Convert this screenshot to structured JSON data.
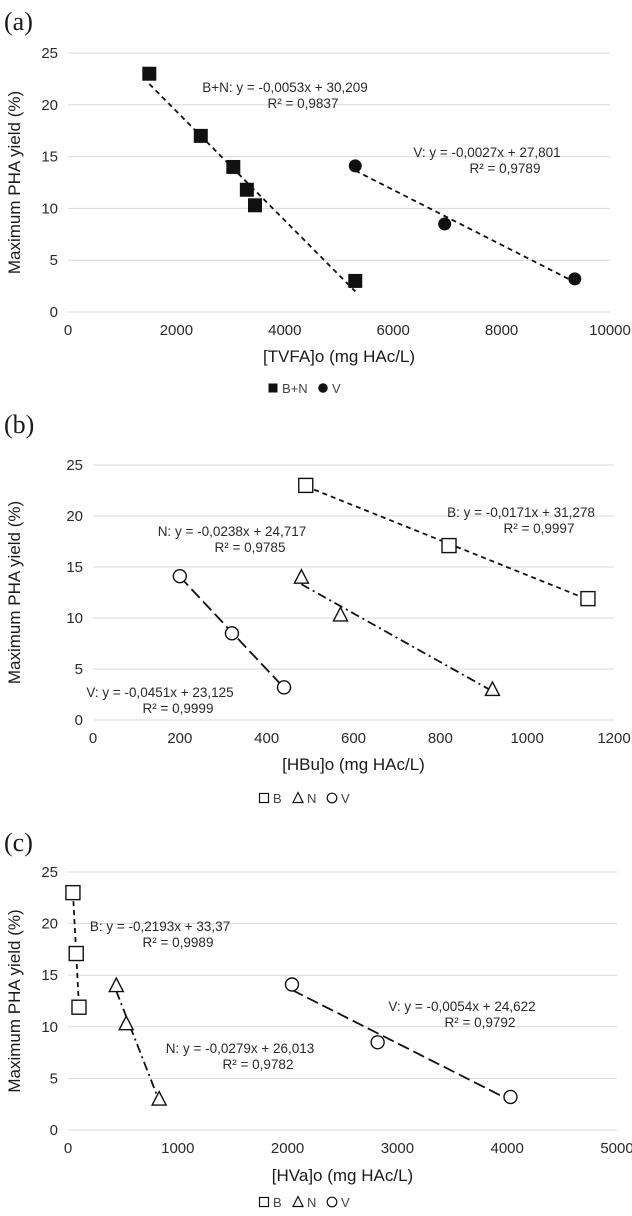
{
  "chart_data": [
    {
      "panel": "(a)",
      "type": "scatter",
      "xlabel": "[TVFA]o (mg HAc/L)",
      "ylabel": "Maximum PHA yield (%)",
      "xlim": [
        0,
        10000
      ],
      "ylim": [
        0,
        25
      ],
      "xticks": [
        0,
        2000,
        4000,
        6000,
        8000,
        10000
      ],
      "yticks": [
        0,
        5,
        10,
        15,
        20,
        25
      ],
      "grid": true,
      "legend_position": "bottom",
      "series": [
        {
          "name": "B+N",
          "marker": "square-filled",
          "line": "dashed",
          "points": [
            [
              1500,
              23.0
            ],
            [
              2450,
              17.0
            ],
            [
              3050,
              14.0
            ],
            [
              3300,
              11.8
            ],
            [
              3450,
              10.3
            ],
            [
              5300,
              3.0
            ]
          ],
          "fit_x": [
            1500,
            5300
          ],
          "equation": "B+N: y = -0,0053x + 30,209",
          "r2": "R² = 0,9837"
        },
        {
          "name": "V",
          "marker": "circle-filled",
          "line": "dashed",
          "points": [
            [
              5300,
              14.1
            ],
            [
              6950,
              8.5
            ],
            [
              9350,
              3.2
            ]
          ],
          "fit_x": [
            5300,
            9350
          ],
          "equation": "V:  y = -0,0027x + 27,801",
          "r2": "R² = 0,9789"
        }
      ]
    },
    {
      "panel": "(b)",
      "type": "scatter",
      "xlabel": "[HBu]o (mg HAc/L)",
      "ylabel": "Maximum PHA yield (%)",
      "xlim": [
        0,
        1200
      ],
      "ylim": [
        0,
        25
      ],
      "xticks": [
        0,
        200,
        400,
        600,
        800,
        1000,
        1200
      ],
      "yticks": [
        0,
        5,
        10,
        15,
        20,
        25
      ],
      "grid": true,
      "legend_position": "bottom",
      "series": [
        {
          "name": "B",
          "marker": "square-open",
          "line": "dashed",
          "points": [
            [
              490,
              23.0
            ],
            [
              820,
              17.1
            ],
            [
              1140,
              11.9
            ]
          ],
          "fit_x": [
            490,
            1140
          ],
          "equation": "B: y = -0,0171x + 31,278",
          "r2": "R² = 0,9997"
        },
        {
          "name": "N",
          "marker": "triangle-open",
          "line": "dashdot",
          "points": [
            [
              480,
              14.0
            ],
            [
              570,
              10.3
            ],
            [
              920,
              3.0
            ]
          ],
          "fit_x": [
            480,
            920
          ],
          "equation": "N: y = -0,0238x + 24,717",
          "r2": "R² = 0,9785"
        },
        {
          "name": "V",
          "marker": "circle-open",
          "line": "longdash",
          "points": [
            [
              200,
              14.1
            ],
            [
              320,
              8.5
            ],
            [
              440,
              3.2
            ]
          ],
          "fit_x": [
            200,
            440
          ],
          "equation": "V: y = -0,0451x + 23,125",
          "r2": "R² = 0,9999"
        }
      ]
    },
    {
      "panel": "(c)",
      "type": "scatter",
      "xlabel": "[HVa]o (mg HAc/L)",
      "ylabel": "Maximum PHA yield (%)",
      "xlim": [
        0,
        5000
      ],
      "ylim": [
        0,
        25
      ],
      "xticks": [
        0,
        1000,
        2000,
        3000,
        4000,
        5000
      ],
      "yticks": [
        0,
        5,
        10,
        15,
        20,
        25
      ],
      "grid": true,
      "legend_position": "bottom",
      "series": [
        {
          "name": "B",
          "marker": "square-open",
          "line": "dashed",
          "points": [
            [
              45,
              23.0
            ],
            [
              75,
              17.1
            ],
            [
              100,
              11.9
            ]
          ],
          "fit_x": [
            45,
            100
          ],
          "equation": "B: y = -0,2193x + 33,37",
          "r2": "R² = 0,9989"
        },
        {
          "name": "N",
          "marker": "triangle-open",
          "line": "dashdot",
          "points": [
            [
              440,
              14.0
            ],
            [
              530,
              10.3
            ],
            [
              830,
              3.0
            ]
          ],
          "fit_x": [
            440,
            830
          ],
          "equation": "N: y = -0,0279x + 26,013",
          "r2": "R² = 0,9782"
        },
        {
          "name": "V",
          "marker": "circle-open",
          "line": "longdash",
          "points": [
            [
              2040,
              14.1
            ],
            [
              2820,
              8.5
            ],
            [
              4030,
              3.2
            ]
          ],
          "fit_x": [
            2040,
            4030
          ],
          "equation": "V: y = -0,0054x + 24,622",
          "r2": "R² = 0,9792"
        }
      ]
    }
  ],
  "colors": {
    "marker": "#111111",
    "grid": "#d9d9d9",
    "text": "#2a2a2a"
  }
}
